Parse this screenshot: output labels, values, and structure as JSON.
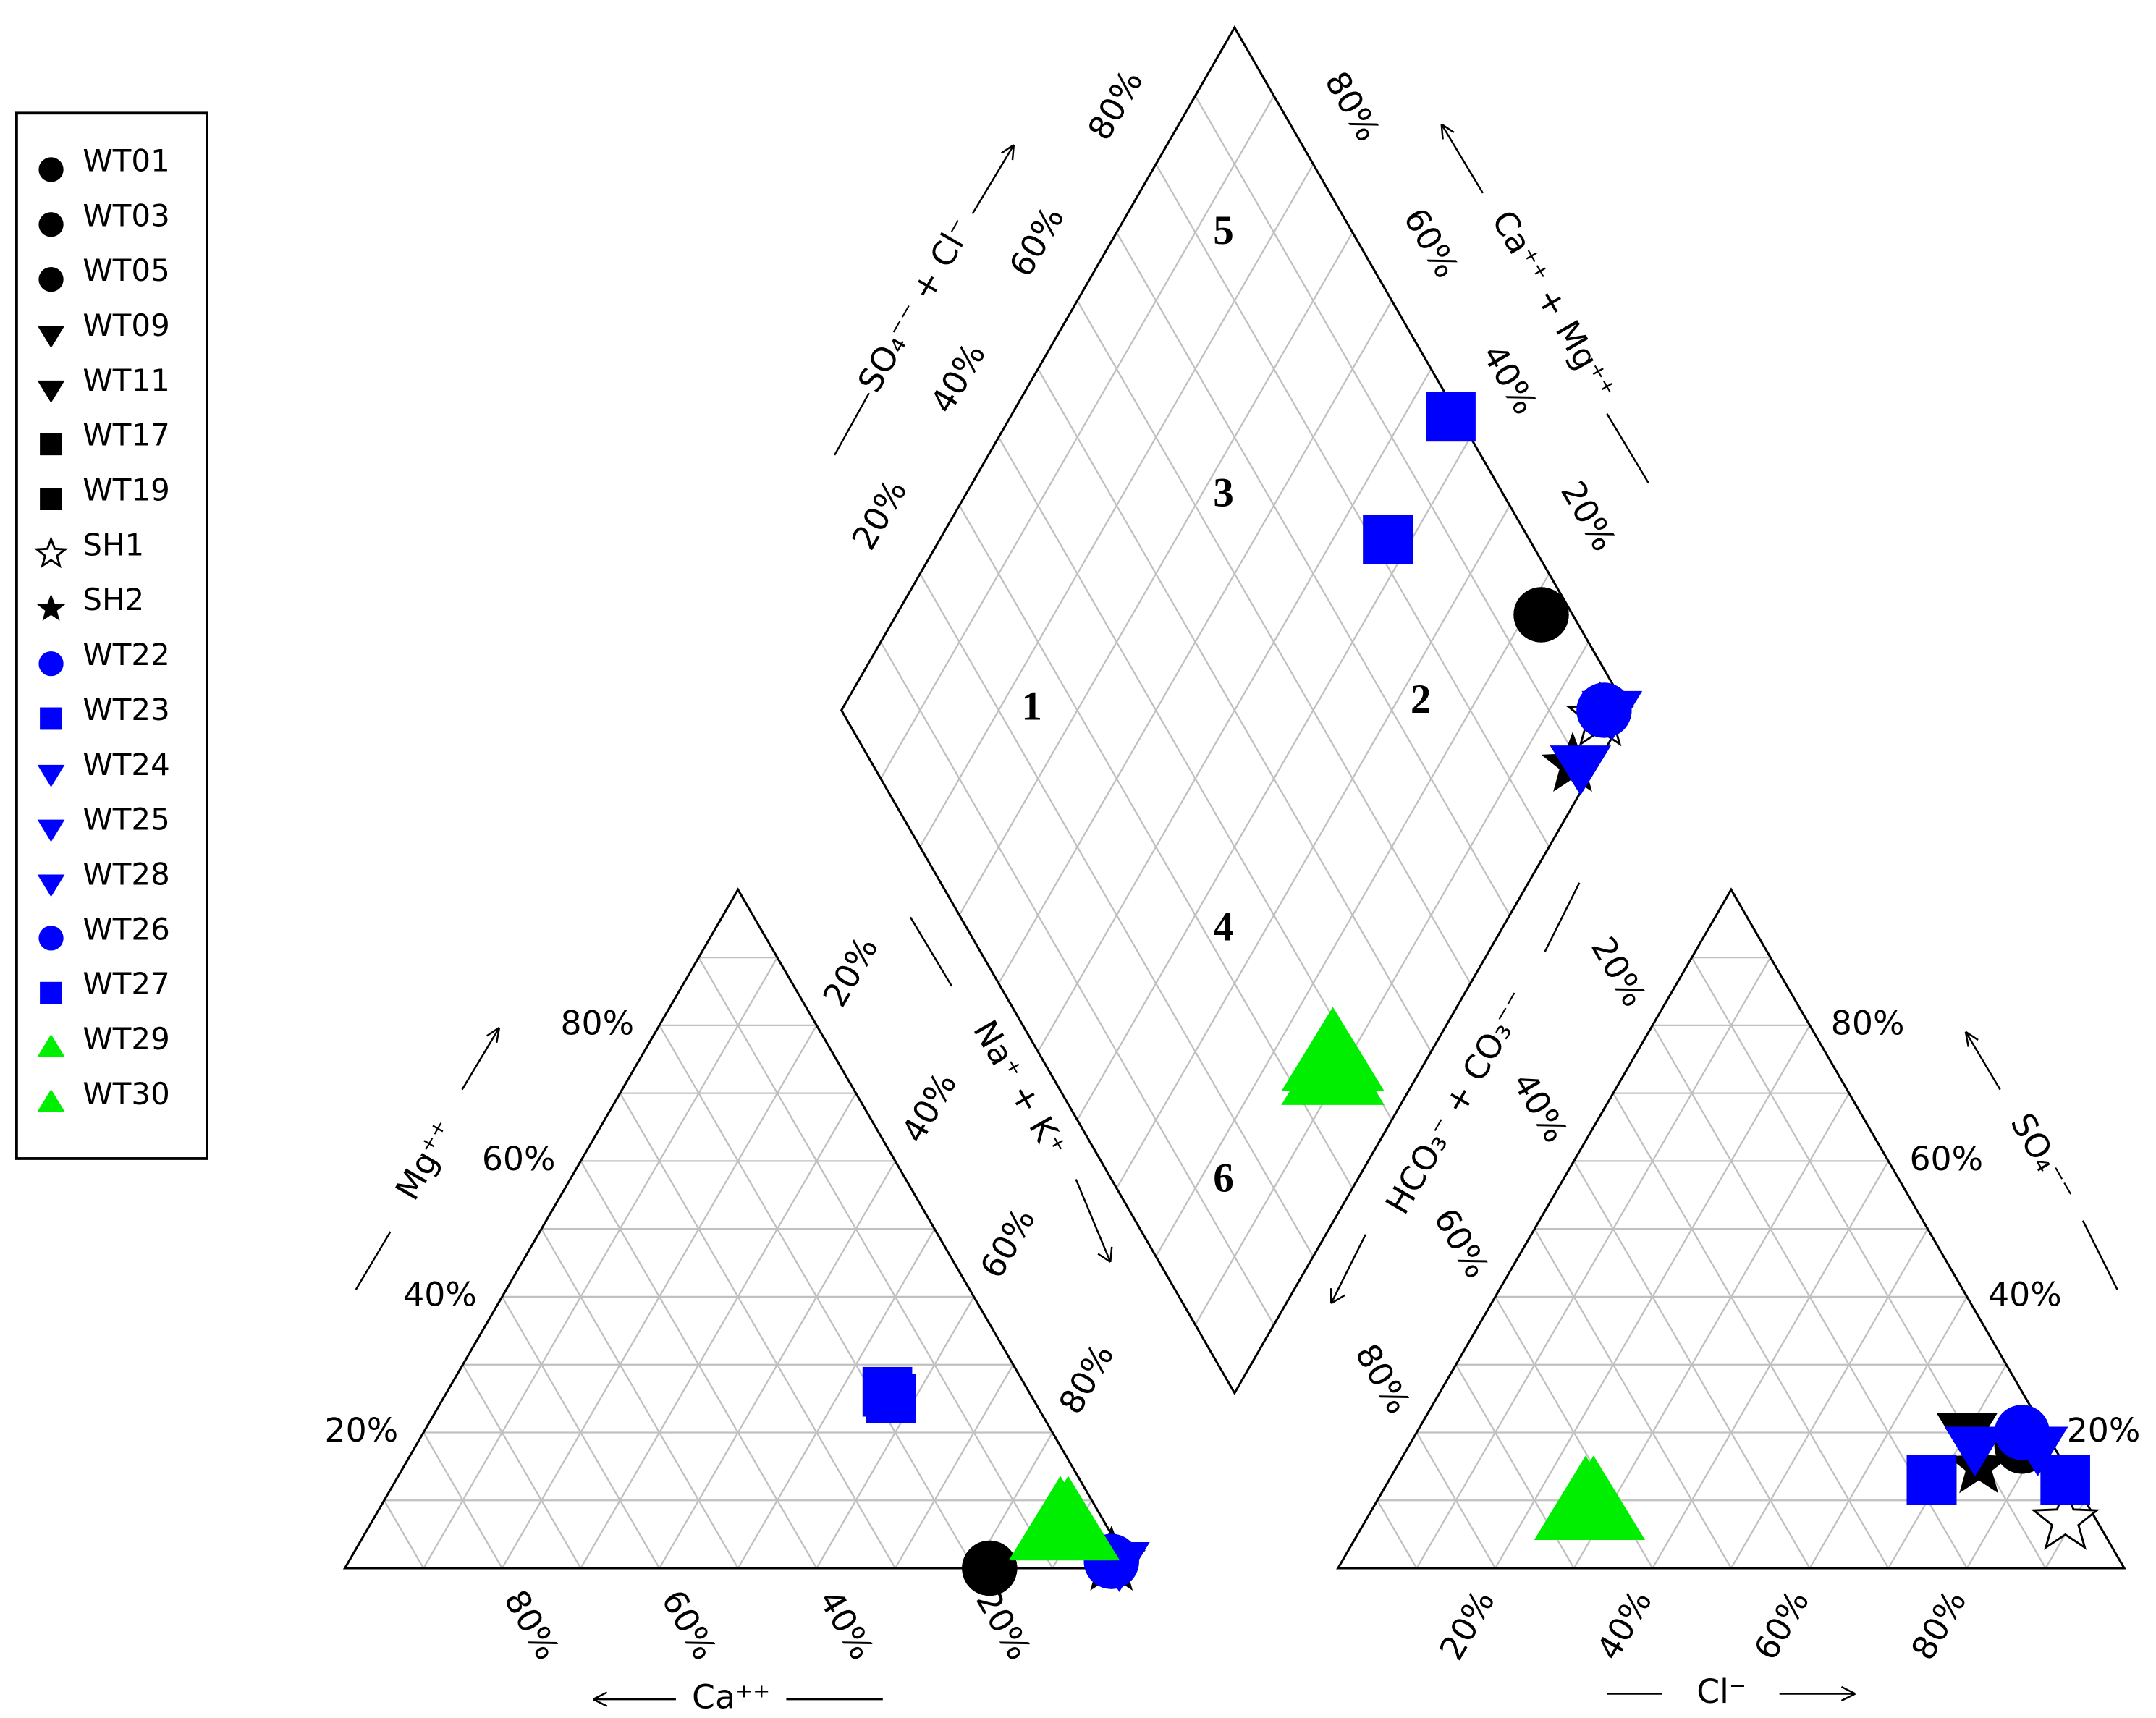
{
  "chart_data": {
    "type": "piper",
    "ticks": [
      {
        "value": 20,
        "label": "20%"
      },
      {
        "value": 40,
        "label": "40%"
      },
      {
        "value": 60,
        "label": "60%"
      },
      {
        "value": 80,
        "label": "80%"
      }
    ],
    "grid": [
      10,
      20,
      30,
      40,
      50,
      60,
      70,
      80,
      90
    ],
    "axis_labels": {
      "ca": "Ca⁺⁺",
      "mg": "Mg⁺⁺",
      "na_k": "Na⁺ + K⁺",
      "so4_cl": "SO₄⁻⁻ + Cl⁻",
      "ca_mg": "Ca⁺⁺ + Mg⁺⁺",
      "hco3_co3": "HCO₃⁻ + CO₃⁻⁻",
      "so4": "SO₄⁻⁻",
      "cl": "Cl⁻"
    },
    "zones": [
      "1",
      "2",
      "3",
      "4",
      "5",
      "6"
    ],
    "series": [
      {
        "name": "WT01",
        "color": "#000000",
        "marker": "circle",
        "ca": 18,
        "mg": 0,
        "cl": 78,
        "so4": 18
      },
      {
        "name": "WT03",
        "color": "#000000",
        "marker": "circle",
        "ca": 18,
        "mg": 0,
        "cl": 78,
        "so4": 18
      },
      {
        "name": "WT05",
        "color": "#000000",
        "marker": "circle",
        "ca": 18,
        "mg": 0,
        "cl": 78,
        "so4": 18
      },
      {
        "name": "WT09",
        "color": "#000000",
        "marker": "triangle-down",
        "ca": 1,
        "mg": 1,
        "cl": 70,
        "so4": 20
      },
      {
        "name": "WT11",
        "color": "#000000",
        "marker": "triangle-down",
        "ca": 1,
        "mg": 1,
        "cl": 70,
        "so4": 20
      },
      {
        "name": "WT17",
        "color": "#000000",
        "marker": "square",
        "ca": 18,
        "mg": 25,
        "cl": 69,
        "so4": 13
      },
      {
        "name": "WT19",
        "color": "#000000",
        "marker": "square",
        "ca": 18,
        "mg": 25,
        "cl": 69,
        "so4": 13
      },
      {
        "name": "SH1",
        "color": "#000000",
        "marker": "star-open",
        "ca": 2,
        "mg": 1,
        "cl": 89,
        "so4": 7
      },
      {
        "name": "SH2",
        "color": "#000000",
        "marker": "star",
        "ca": 2,
        "mg": 1,
        "cl": 74,
        "so4": 15
      },
      {
        "name": "WT22",
        "color": "#0000ff",
        "marker": "circle",
        "ca": 2,
        "mg": 1,
        "cl": 77,
        "so4": 20
      },
      {
        "name": "WT23",
        "color": "#0000ff",
        "marker": "square",
        "ca": 18,
        "mg": 25,
        "cl": 69,
        "so4": 13
      },
      {
        "name": "WT24",
        "color": "#0000ff",
        "marker": "triangle-down",
        "ca": 1,
        "mg": 1,
        "cl": 80,
        "so4": 18
      },
      {
        "name": "WT25",
        "color": "#0000ff",
        "marker": "triangle-down",
        "ca": 1,
        "mg": 1,
        "cl": 72,
        "so4": 18
      },
      {
        "name": "WT28",
        "color": "#0000ff",
        "marker": "triangle-down",
        "ca": 1,
        "mg": 1,
        "cl": 72,
        "so4": 18
      },
      {
        "name": "WT26",
        "color": "#0000ff",
        "marker": "circle",
        "ca": 2,
        "mg": 1,
        "cl": 77,
        "so4": 20
      },
      {
        "name": "WT27",
        "color": "#0000ff",
        "marker": "square",
        "ca": 18,
        "mg": 26,
        "cl": 86,
        "so4": 13
      },
      {
        "name": "WT29",
        "color": "#00ee00",
        "marker": "triangle-up",
        "ca": 5,
        "mg": 6,
        "cl": 27,
        "so4": 9
      },
      {
        "name": "WT30",
        "color": "#00ee00",
        "marker": "triangle-up",
        "ca": 6,
        "mg": 6,
        "cl": 28,
        "so4": 9
      }
    ]
  }
}
